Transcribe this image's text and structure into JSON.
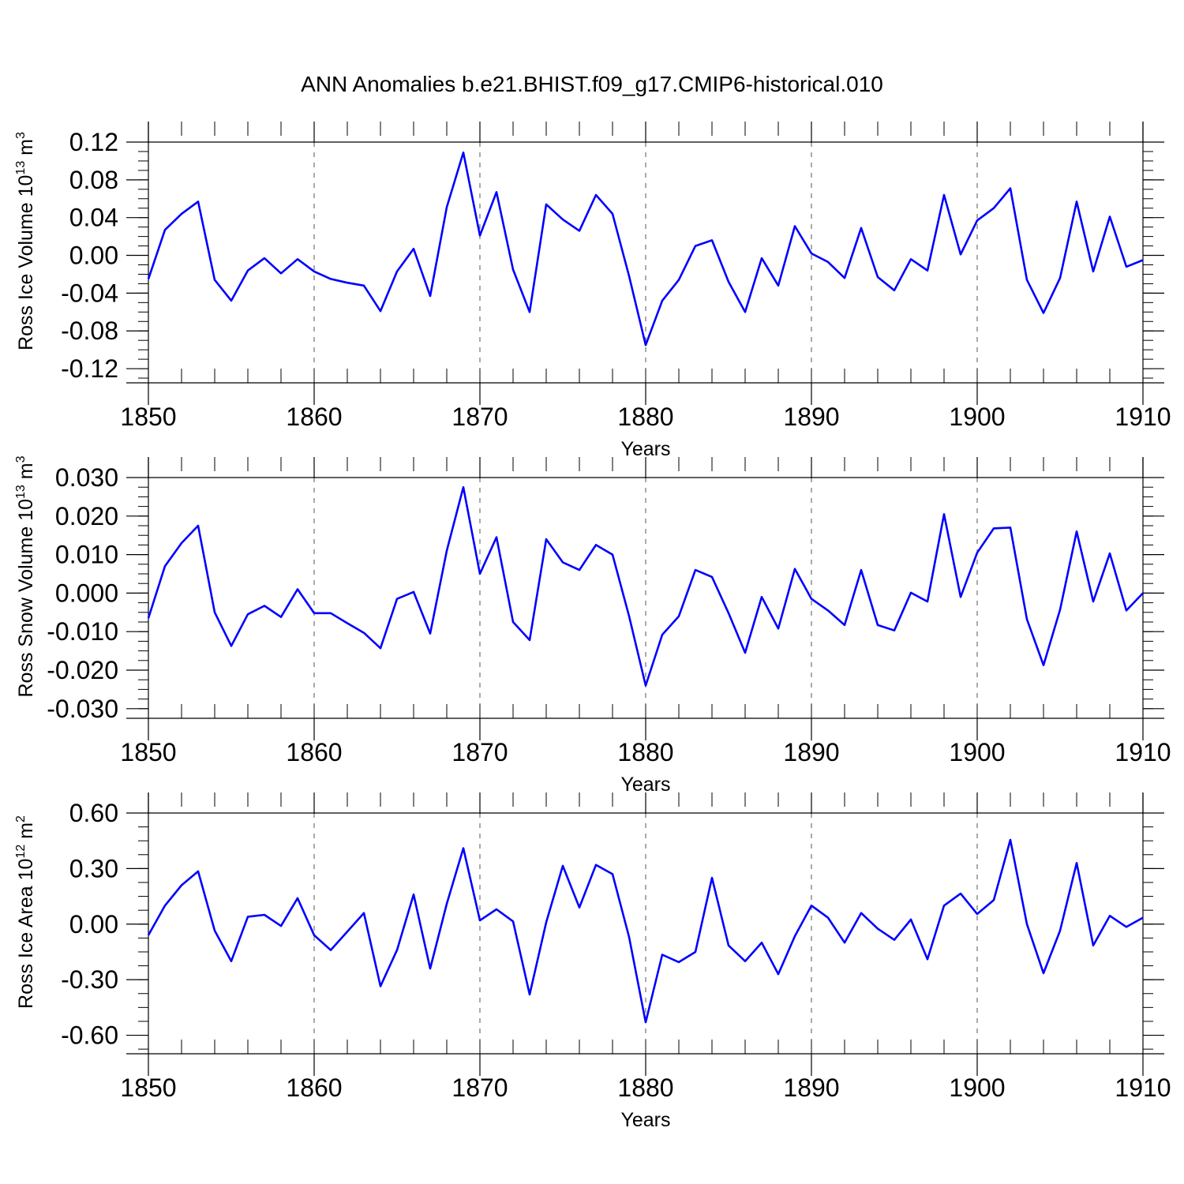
{
  "title": "ANN Anomalies b.e21.BHIST.f09_g17.CMIP6-historical.010",
  "colors": {
    "series": "#0000ff",
    "axes": "#000000",
    "grid": "#555555"
  },
  "chart_data": [
    {
      "type": "line",
      "ylabel": "Ross Ice Volume 10",
      "ylabel_exp": "13",
      "ylabel_unit": " m",
      "ylabel_unit_exp": "3",
      "xlabel": "Years",
      "xlim": [
        1850,
        1910
      ],
      "ylim": [
        -0.135,
        0.12
      ],
      "yticks": [
        0.12,
        0.08,
        0.04,
        0.0,
        -0.04,
        -0.08,
        -0.12
      ],
      "ytick_labels": [
        "0.12",
        "0.08",
        "0.04",
        "0.00",
        "-0.04",
        "-0.08",
        "-0.12"
      ],
      "xticks": [
        1850,
        1860,
        1870,
        1880,
        1890,
        1900,
        1910
      ],
      "xtick_labels": [
        "1850",
        "1860",
        "1870",
        "1880",
        "1890",
        "1900",
        "1910"
      ],
      "grid": "vertical dashed at decades",
      "x": [
        1850,
        1851,
        1852,
        1853,
        1854,
        1855,
        1856,
        1857,
        1858,
        1859,
        1860,
        1861,
        1862,
        1863,
        1864,
        1865,
        1866,
        1867,
        1868,
        1869,
        1870,
        1871,
        1872,
        1873,
        1874,
        1875,
        1876,
        1877,
        1878,
        1879,
        1880,
        1881,
        1882,
        1883,
        1884,
        1885,
        1886,
        1887,
        1888,
        1889,
        1890,
        1891,
        1892,
        1893,
        1894,
        1895,
        1896,
        1897,
        1898,
        1899,
        1900,
        1901,
        1902,
        1903,
        1904,
        1905,
        1906,
        1907,
        1908,
        1909,
        1910
      ],
      "values": [
        -0.025,
        0.027,
        0.044,
        0.057,
        -0.026,
        -0.048,
        -0.016,
        -0.003,
        -0.019,
        -0.004,
        -0.017,
        -0.025,
        -0.029,
        -0.032,
        -0.059,
        -0.017,
        0.007,
        -0.043,
        0.051,
        0.109,
        0.021,
        0.067,
        -0.015,
        -0.06,
        0.054,
        0.038,
        0.026,
        0.064,
        0.044,
        -0.022,
        -0.095,
        -0.048,
        -0.026,
        0.01,
        0.016,
        -0.028,
        -0.06,
        -0.003,
        -0.032,
        0.031,
        0.002,
        -0.007,
        -0.024,
        0.029,
        -0.023,
        -0.037,
        -0.004,
        -0.016,
        0.064,
        0.001,
        0.037,
        0.05,
        0.071,
        -0.026,
        -0.061,
        -0.024,
        0.057,
        -0.017,
        0.041,
        -0.012,
        -0.005
      ]
    },
    {
      "type": "line",
      "ylabel": "Ross Snow Volume 10",
      "ylabel_exp": "13",
      "ylabel_unit": " m",
      "ylabel_unit_exp": "3",
      "xlabel": "Years",
      "xlim": [
        1850,
        1910
      ],
      "ylim": [
        -0.0325,
        0.03
      ],
      "yticks": [
        0.03,
        0.02,
        0.01,
        0.0,
        -0.01,
        -0.02,
        -0.03
      ],
      "ytick_labels": [
        "0.030",
        "0.020",
        "0.010",
        "0.000",
        "-0.010",
        "-0.020",
        "-0.030"
      ],
      "xticks": [
        1850,
        1860,
        1870,
        1880,
        1890,
        1900,
        1910
      ],
      "xtick_labels": [
        "1850",
        "1860",
        "1870",
        "1880",
        "1890",
        "1900",
        "1910"
      ],
      "grid": "vertical dashed at decades",
      "x": [
        1850,
        1851,
        1852,
        1853,
        1854,
        1855,
        1856,
        1857,
        1858,
        1859,
        1860,
        1861,
        1862,
        1863,
        1864,
        1865,
        1866,
        1867,
        1868,
        1869,
        1870,
        1871,
        1872,
        1873,
        1874,
        1875,
        1876,
        1877,
        1878,
        1879,
        1880,
        1881,
        1882,
        1883,
        1884,
        1885,
        1886,
        1887,
        1888,
        1889,
        1890,
        1891,
        1892,
        1893,
        1894,
        1895,
        1896,
        1897,
        1898,
        1899,
        1900,
        1901,
        1902,
        1903,
        1904,
        1905,
        1906,
        1907,
        1908,
        1909,
        1910
      ],
      "values": [
        -0.0065,
        0.007,
        0.013,
        0.0175,
        -0.005,
        -0.0137,
        -0.0055,
        -0.0033,
        -0.0062,
        0.001,
        -0.0052,
        -0.0052,
        -0.0078,
        -0.0103,
        -0.0143,
        -0.0015,
        0.0003,
        -0.0105,
        0.011,
        0.0275,
        0.005,
        0.0145,
        -0.0075,
        -0.0122,
        0.014,
        0.008,
        0.006,
        0.0125,
        0.01,
        -0.006,
        -0.024,
        -0.0108,
        -0.006,
        0.006,
        0.0042,
        -0.0052,
        -0.0155,
        -0.001,
        -0.0092,
        0.0063,
        -0.0015,
        -0.0045,
        -0.0083,
        0.006,
        -0.0083,
        -0.0097,
        0.0001,
        -0.0022,
        0.0205,
        -0.001,
        0.0105,
        0.0168,
        0.017,
        -0.0068,
        -0.0187,
        -0.0043,
        0.016,
        -0.0022,
        0.0103,
        -0.0045,
        0.0
      ]
    },
    {
      "type": "line",
      "ylabel": "Ross Ice Area 10",
      "ylabel_exp": "12",
      "ylabel_unit": " m",
      "ylabel_unit_exp": "2",
      "xlabel": "Years",
      "xlim": [
        1850,
        1910
      ],
      "ylim": [
        -0.7,
        0.6
      ],
      "yticks": [
        0.6,
        0.3,
        0.0,
        -0.3,
        -0.6
      ],
      "ytick_labels": [
        "0.60",
        "0.30",
        "0.00",
        "-0.30",
        "-0.60"
      ],
      "xticks": [
        1850,
        1860,
        1870,
        1880,
        1890,
        1900,
        1910
      ],
      "xtick_labels": [
        "1850",
        "1860",
        "1870",
        "1880",
        "1890",
        "1900",
        "1910"
      ],
      "grid": "vertical dashed at decades",
      "x": [
        1850,
        1851,
        1852,
        1853,
        1854,
        1855,
        1856,
        1857,
        1858,
        1859,
        1860,
        1861,
        1862,
        1863,
        1864,
        1865,
        1866,
        1867,
        1868,
        1869,
        1870,
        1871,
        1872,
        1873,
        1874,
        1875,
        1876,
        1877,
        1878,
        1879,
        1880,
        1881,
        1882,
        1883,
        1884,
        1885,
        1886,
        1887,
        1888,
        1889,
        1890,
        1891,
        1892,
        1893,
        1894,
        1895,
        1896,
        1897,
        1898,
        1899,
        1900,
        1901,
        1902,
        1903,
        1904,
        1905,
        1906,
        1907,
        1908,
        1909,
        1910
      ],
      "values": [
        -0.06,
        0.1,
        0.21,
        0.285,
        -0.035,
        -0.2,
        0.04,
        0.05,
        -0.01,
        0.14,
        -0.06,
        -0.14,
        -0.04,
        0.06,
        -0.335,
        -0.14,
        0.16,
        -0.24,
        0.11,
        0.41,
        0.02,
        0.08,
        0.015,
        -0.38,
        0.01,
        0.315,
        0.09,
        0.32,
        0.27,
        -0.07,
        -0.53,
        -0.165,
        -0.205,
        -0.15,
        0.25,
        -0.115,
        -0.2,
        -0.1,
        -0.27,
        -0.065,
        0.1,
        0.035,
        -0.1,
        0.06,
        -0.025,
        -0.085,
        0.025,
        -0.19,
        0.1,
        0.165,
        0.055,
        0.13,
        0.455,
        0.0,
        -0.265,
        -0.035,
        0.33,
        -0.115,
        0.045,
        -0.015,
        0.035
      ]
    }
  ]
}
